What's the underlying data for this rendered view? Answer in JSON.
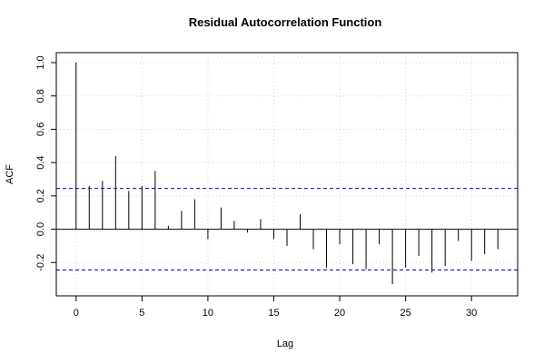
{
  "chart_data": {
    "type": "bar",
    "title": "Residual Autocorrelation Function",
    "xlabel": "Lag",
    "ylabel": "ACF",
    "xlim": [
      -1.5,
      33.5
    ],
    "ylim": [
      -0.4,
      1.06
    ],
    "x_ticks": [
      0,
      5,
      10,
      15,
      20,
      25,
      30
    ],
    "y_ticks": [
      -0.2,
      0.0,
      0.2,
      0.4,
      0.6,
      0.8,
      1.0
    ],
    "y_tick_labels": [
      "-0.2",
      "0.0",
      "0.2",
      "0.4",
      "0.6",
      "0.8",
      "1.0"
    ],
    "grid": true,
    "lags": [
      0,
      1,
      2,
      3,
      4,
      5,
      6,
      7,
      8,
      9,
      10,
      11,
      12,
      13,
      14,
      15,
      16,
      17,
      18,
      19,
      20,
      21,
      22,
      23,
      24,
      25,
      26,
      27,
      28,
      29,
      30,
      31,
      32
    ],
    "values": [
      1.0,
      0.26,
      0.29,
      0.44,
      0.23,
      0.26,
      0.35,
      0.02,
      0.11,
      0.18,
      -0.06,
      0.13,
      0.05,
      -0.02,
      0.06,
      -0.06,
      -0.1,
      0.09,
      -0.12,
      -0.23,
      -0.09,
      -0.21,
      -0.24,
      -0.09,
      -0.33,
      -0.23,
      -0.16,
      -0.26,
      -0.22,
      -0.07,
      -0.19,
      -0.15,
      -0.12
    ],
    "confidence_band": 0.245,
    "colors": {
      "bars": "#000000",
      "confidence": "#0000cc",
      "grid": "#d8d8d8",
      "axis": "#000000"
    }
  }
}
